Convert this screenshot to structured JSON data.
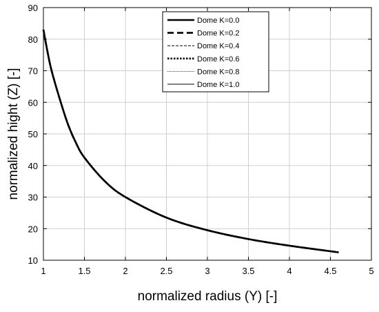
{
  "chart_data": {
    "type": "line",
    "title": "",
    "xlabel": "normalized radius (Y) [-]",
    "ylabel": "normalized hight (Z) [-]",
    "xlim": [
      1,
      5
    ],
    "ylim": [
      10,
      90
    ],
    "xticks": [
      1,
      1.5,
      2,
      2.5,
      3,
      3.5,
      4,
      4.5,
      5
    ],
    "yticks": [
      10,
      20,
      30,
      40,
      50,
      60,
      70,
      80,
      90
    ],
    "xtick_labels": [
      "1",
      "1.5",
      "2",
      "2.5",
      "3",
      "3.5",
      "4",
      "4.5",
      "5"
    ],
    "ytick_labels": [
      "10",
      "20",
      "30",
      "40",
      "50",
      "60",
      "70",
      "80",
      "90"
    ],
    "grid": true,
    "legend_position": "top-center",
    "series": [
      {
        "name": "Dome K=0.0",
        "style": "solid-thick",
        "x": [
          1.0,
          1.05,
          1.1,
          1.2,
          1.3,
          1.4,
          1.5,
          1.75,
          2.0,
          2.5,
          3.0,
          3.5,
          4.0,
          4.6
        ],
        "y": [
          83,
          76,
          70,
          61,
          53,
          47,
          42.5,
          35,
          30,
          23.5,
          19.5,
          16.7,
          14.6,
          12.5
        ]
      },
      {
        "name": "Dome K=0.2",
        "style": "dashed-thick",
        "x": [
          1.0,
          1.05,
          1.1,
          1.2,
          1.3,
          1.4,
          1.5,
          1.75,
          2.0,
          2.5,
          3.0,
          3.5,
          4.0,
          4.6
        ],
        "y": [
          83,
          76,
          70,
          61,
          53,
          47,
          42.5,
          35,
          30,
          23.5,
          19.5,
          16.7,
          14.6,
          12.5
        ]
      },
      {
        "name": "Dome K=0.4",
        "style": "dashed-thin",
        "x": [
          1.0,
          1.05,
          1.1,
          1.2,
          1.3,
          1.4,
          1.5,
          1.75,
          2.0,
          2.5,
          3.0,
          3.5,
          4.0,
          4.6
        ],
        "y": [
          83,
          76,
          70,
          61,
          53,
          47,
          42.5,
          35,
          30,
          23.5,
          19.5,
          16.7,
          14.6,
          12.5
        ]
      },
      {
        "name": "Dome K=0.6",
        "style": "dotted-thick",
        "x": [
          1.0,
          1.05,
          1.1,
          1.2,
          1.3,
          1.4,
          1.5,
          1.75,
          2.0,
          2.5,
          3.0,
          3.5,
          4.0,
          4.6
        ],
        "y": [
          83,
          76,
          70,
          61,
          53,
          47,
          42.5,
          35,
          30,
          23.5,
          19.5,
          16.7,
          14.6,
          12.5
        ]
      },
      {
        "name": "Dome K=0.8",
        "style": "dotted-thin",
        "x": [
          1.0,
          1.05,
          1.1,
          1.2,
          1.3,
          1.4,
          1.5,
          1.75,
          2.0,
          2.5,
          3.0,
          3.5,
          4.0,
          4.6
        ],
        "y": [
          83,
          76,
          70,
          61,
          53,
          47,
          42.5,
          35,
          30,
          23.5,
          19.5,
          16.7,
          14.6,
          12.5
        ]
      },
      {
        "name": "Dome K=1.0",
        "style": "solid-thin",
        "x": [
          1.0,
          1.05,
          1.1,
          1.2,
          1.3,
          1.4,
          1.5,
          1.75,
          2.0,
          2.5,
          3.0,
          3.5,
          4.0,
          4.6
        ],
        "y": [
          83,
          76,
          70,
          61,
          53,
          47,
          42.5,
          35,
          30,
          23.5,
          19.5,
          16.7,
          14.6,
          12.5
        ]
      }
    ]
  }
}
